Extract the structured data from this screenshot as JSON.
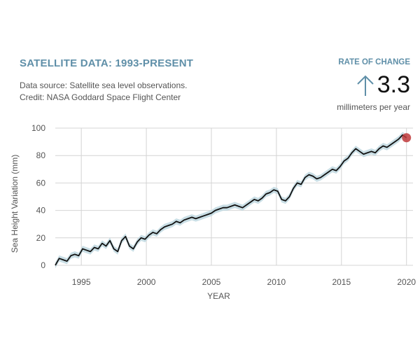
{
  "header": {
    "title": "SATELLITE DATA: 1993-PRESENT",
    "source": "Data source: Satellite sea level observations.",
    "credit": "Credit: NASA Goddard Space Flight Center"
  },
  "rate": {
    "label": "RATE OF CHANGE",
    "value": "3.3",
    "unit": "millimeters per year",
    "arrow_icon": "up-arrow-icon",
    "arrow_color": "#5f8fa8"
  },
  "chart_data": {
    "type": "line",
    "title": "SATELLITE DATA: 1993-PRESENT",
    "xlabel": "YEAR",
    "ylabel": "Sea Height Variation (mm)",
    "xlim": [
      1993,
      2020.5
    ],
    "ylim": [
      0,
      100
    ],
    "xticks": [
      1995,
      2000,
      2005,
      2010,
      2015,
      2020
    ],
    "yticks": [
      0,
      20,
      40,
      60,
      80,
      100
    ],
    "grid": true,
    "line_color": "#111111",
    "band_color": "#bcd6de",
    "end_marker_color": "#c0393b",
    "series": [
      {
        "x": [
          1993.0,
          1993.3,
          1993.6,
          1993.9,
          1994.2,
          1994.5,
          1994.8,
          1995.1,
          1995.4,
          1995.7,
          1996.0,
          1996.3,
          1996.6,
          1996.9,
          1997.2,
          1997.5,
          1997.8,
          1998.1,
          1998.4,
          1998.7,
          1999.0,
          1999.3,
          1999.6,
          1999.9,
          2000.2,
          2000.5,
          2000.8,
          2001.1,
          2001.4,
          2001.7,
          2002.0,
          2002.3,
          2002.6,
          2002.9,
          2003.2,
          2003.5,
          2003.8,
          2004.1,
          2004.4,
          2004.7,
          2005.0,
          2005.3,
          2005.6,
          2005.9,
          2006.2,
          2006.5,
          2006.8,
          2007.1,
          2007.4,
          2007.7,
          2008.0,
          2008.3,
          2008.6,
          2008.9,
          2009.2,
          2009.5,
          2009.8,
          2010.1,
          2010.4,
          2010.7,
          2011.0,
          2011.3,
          2011.6,
          2011.9,
          2012.2,
          2012.5,
          2012.8,
          2013.1,
          2013.4,
          2013.7,
          2014.0,
          2014.3,
          2014.6,
          2014.9,
          2015.2,
          2015.5,
          2015.8,
          2016.1,
          2016.4,
          2016.7,
          2017.0,
          2017.3,
          2017.6,
          2017.9,
          2018.2,
          2018.5,
          2018.8,
          2019.1,
          2019.4,
          2019.7,
          2020.0
        ],
        "y": [
          0,
          5,
          4,
          3,
          7,
          8,
          7,
          12,
          11,
          10,
          13,
          12,
          16,
          14,
          18,
          12,
          10,
          18,
          21,
          14,
          12,
          17,
          20,
          19,
          22,
          24,
          23,
          26,
          28,
          29,
          30,
          32,
          31,
          33,
          34,
          35,
          34,
          35,
          36,
          37,
          38,
          40,
          41,
          42,
          42,
          43,
          44,
          43,
          42,
          44,
          46,
          48,
          47,
          49,
          52,
          53,
          55,
          54,
          48,
          47,
          50,
          56,
          60,
          59,
          64,
          66,
          65,
          63,
          64,
          66,
          68,
          70,
          69,
          72,
          76,
          78,
          82,
          85,
          83,
          81,
          82,
          83,
          82,
          85,
          87,
          86,
          88,
          90,
          92,
          95,
          93
        ]
      }
    ]
  }
}
